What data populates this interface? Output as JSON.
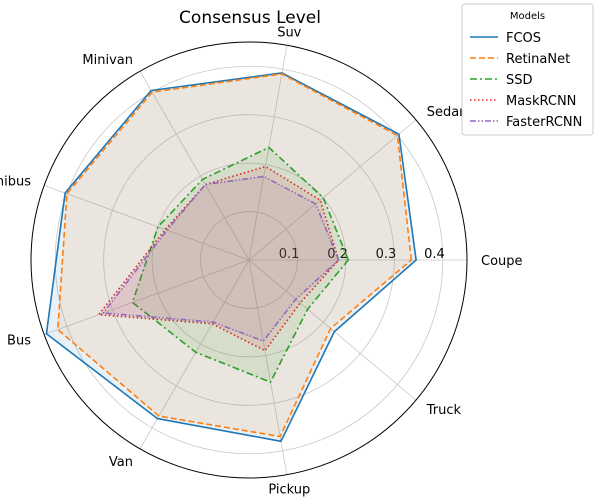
{
  "chart_data": {
    "type": "radar",
    "title": "Consensus Level",
    "axes": [
      "Coupe",
      "Sedan",
      "Suv",
      "Minivan",
      "Minibus",
      "Bus",
      "Van",
      "Pickup",
      "Truck"
    ],
    "rlim": [
      0,
      0.45
    ],
    "r_ticks": [
      0.1,
      0.2,
      0.3,
      0.4
    ],
    "r_tick_labels": [
      "0.1",
      "0.2",
      "0.3",
      "0.4"
    ],
    "grid": true,
    "legend": {
      "title": "Models",
      "placement": "outside top-right"
    },
    "series": [
      {
        "name": "FCOS",
        "color": "#1f77b4",
        "dash": "solid",
        "values": [
          0.345,
          0.404,
          0.392,
          0.404,
          0.404,
          0.445,
          0.378,
          0.38,
          0.23
        ]
      },
      {
        "name": "RetinaNet",
        "color": "#ff7f0e",
        "dash": "dashed",
        "values": [
          0.335,
          0.4,
          0.39,
          0.4,
          0.4,
          0.42,
          0.372,
          0.37,
          0.22
        ]
      },
      {
        "name": "SSD",
        "color": "#2ca02c",
        "dash": "dashdot",
        "values": [
          0.205,
          0.2,
          0.236,
          0.192,
          0.2,
          0.256,
          0.22,
          0.256,
          0.158
        ]
      },
      {
        "name": "MaskRCNN",
        "color": "#d62728",
        "dash": "dotted",
        "values": [
          0.185,
          0.192,
          0.196,
          0.18,
          0.184,
          0.33,
          0.152,
          0.19,
          0.138
        ]
      },
      {
        "name": "FasterRCNN",
        "color": "#9467bd",
        "dash": "dashdotdot",
        "values": [
          0.185,
          0.18,
          0.175,
          0.18,
          0.18,
          0.32,
          0.148,
          0.17,
          0.126
        ]
      }
    ]
  }
}
